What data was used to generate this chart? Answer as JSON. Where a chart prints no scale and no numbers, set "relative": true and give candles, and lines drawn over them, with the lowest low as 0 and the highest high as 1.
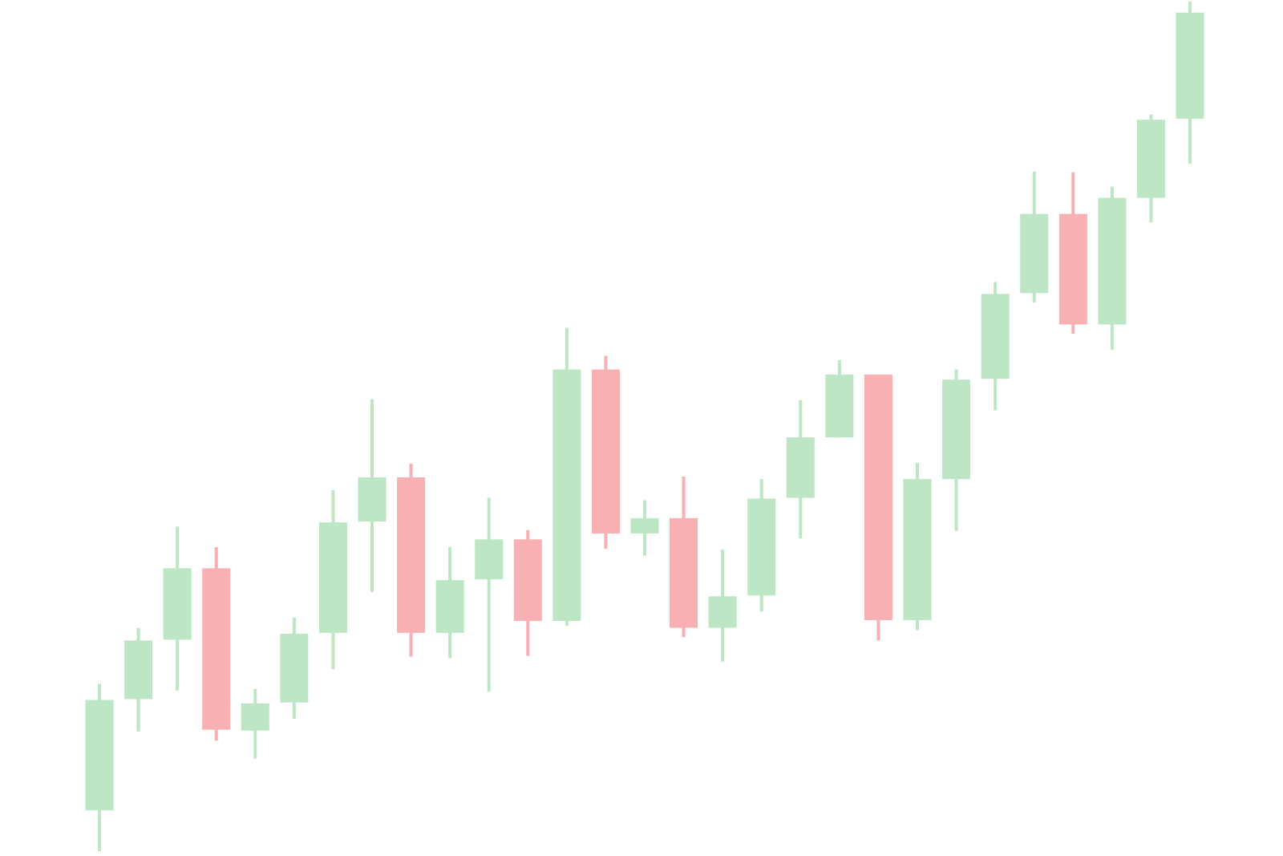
{
  "chart_data": {
    "type": "candlestick",
    "relative": true,
    "categories": [
      null,
      null,
      null,
      null,
      null,
      null,
      null,
      null,
      null,
      null,
      null,
      null,
      null,
      null,
      null,
      null,
      null,
      null,
      null,
      null,
      null,
      null,
      null,
      null,
      null,
      null,
      null,
      null,
      null
    ],
    "ohlc": [
      [
        0.048,
        0.197,
        0,
        0.178
      ],
      [
        0.179,
        0.263,
        0.141,
        0.248
      ],
      [
        0.249,
        0.382,
        0.189,
        0.333
      ],
      [
        0.333,
        0.358,
        0.13,
        0.143
      ],
      [
        0.142,
        0.191,
        0.109,
        0.174
      ],
      [
        0.175,
        0.275,
        0.156,
        0.256
      ],
      [
        0.257,
        0.425,
        0.214,
        0.387
      ],
      [
        0.388,
        0.532,
        0.305,
        0.44
      ],
      [
        0.44,
        0.456,
        0.229,
        0.257
      ],
      [
        0.257,
        0.358,
        0.227,
        0.319
      ],
      [
        0.32,
        0.416,
        0.188,
        0.367
      ],
      [
        0.367,
        0.378,
        0.23,
        0.271
      ],
      [
        0.271,
        0.616,
        0.265,
        0.567
      ],
      [
        0.567,
        0.583,
        0.356,
        0.374
      ],
      [
        0.374,
        0.413,
        0.348,
        0.392
      ],
      [
        0.392,
        0.441,
        0.252,
        0.263
      ],
      [
        0.263,
        0.355,
        0.223,
        0.3
      ],
      [
        0.301,
        0.438,
        0.282,
        0.415
      ],
      [
        0.416,
        0.531,
        0.368,
        0.487
      ],
      [
        0.487,
        0.578,
        0.487,
        0.561
      ],
      [
        0.561,
        0.561,
        0.248,
        0.272
      ],
      [
        0.272,
        0.457,
        0.26,
        0.438
      ],
      [
        0.438,
        0.567,
        0.377,
        0.555
      ],
      [
        0.556,
        0.67,
        0.519,
        0.656
      ],
      [
        0.657,
        0.8,
        0.646,
        0.75
      ],
      [
        0.75,
        0.799,
        0.609,
        0.62
      ],
      [
        0.62,
        0.782,
        0.59,
        0.769
      ],
      [
        0.769,
        0.867,
        0.74,
        0.861
      ],
      [
        0.862,
        1,
        0.809,
        0.987
      ]
    ],
    "colors": [
      "#bde6c4",
      "#bde6c4",
      "#bde6c4",
      "#f8b0b3",
      "#bde6c4",
      "#bde6c4",
      "#bde6c4",
      "#bde6c4",
      "#f8b0b3",
      "#bde6c4",
      "#bde6c4",
      "#f8b0b3",
      "#bde6c4",
      "#f8b0b3",
      "#bde6c4",
      "#f8b0b3",
      "#bde6c4",
      "#bde6c4",
      "#bde6c4",
      "#bde6c4",
      "#f8b0b3",
      "#bde6c4",
      "#bde6c4",
      "#bde6c4",
      "#bde6c4",
      "#f8b0b3",
      "#bde6c4",
      "#bde6c4",
      "#bde6c4"
    ]
  }
}
